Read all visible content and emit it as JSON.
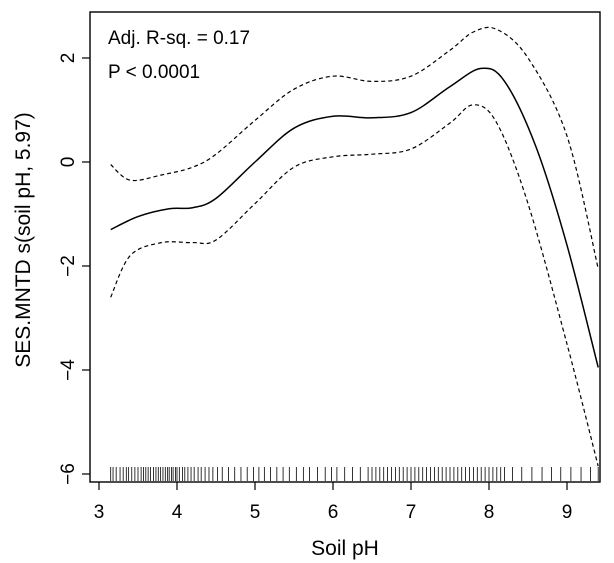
{
  "chart_data": {
    "type": "line",
    "xlabel": "Soil pH",
    "ylabel": "SES.MNTD s(soil pH, 5.97)",
    "xlim": [
      3.0,
      9.45
    ],
    "ylim": [
      -6.0,
      2.6
    ],
    "xticks": [
      "3",
      "4",
      "5",
      "6",
      "7",
      "8",
      "9"
    ],
    "yticks": [
      "−6",
      "−4",
      "−2",
      "0",
      "2"
    ],
    "xtick_values": [
      3,
      4,
      5,
      6,
      7,
      8,
      9
    ],
    "ytick_values": [
      -6,
      -4,
      -2,
      0,
      2
    ],
    "annotations": [
      "Adj. R-sq. = 0.17",
      "P < 0.0001"
    ],
    "grid": false,
    "series": [
      {
        "style": "solid",
        "x": [
          3.15,
          3.5,
          3.9,
          4.2,
          4.5,
          5.0,
          5.5,
          6.0,
          6.5,
          7.0,
          7.5,
          7.9,
          8.2,
          8.6,
          9.0,
          9.4
        ],
        "y": [
          -1.3,
          -1.05,
          -0.9,
          -0.88,
          -0.7,
          0.0,
          0.65,
          0.88,
          0.85,
          0.95,
          1.45,
          1.8,
          1.55,
          0.3,
          -1.6,
          -3.95
        ]
      },
      {
        "style": "dashed",
        "x": [
          3.15,
          3.4,
          3.8,
          4.2,
          4.5,
          5.0,
          5.5,
          6.0,
          6.5,
          7.0,
          7.5,
          7.8,
          8.1,
          8.5,
          9.0,
          9.4
        ],
        "y": [
          -0.05,
          -0.35,
          -0.25,
          -0.1,
          0.15,
          0.8,
          1.4,
          1.65,
          1.55,
          1.65,
          2.15,
          2.5,
          2.55,
          2.0,
          0.5,
          -2.05
        ]
      },
      {
        "style": "dashed",
        "x": [
          3.15,
          3.4,
          3.8,
          4.2,
          4.5,
          5.0,
          5.5,
          6.0,
          6.5,
          7.0,
          7.5,
          7.8,
          8.1,
          8.5,
          9.0,
          9.4
        ],
        "y": [
          -2.6,
          -1.8,
          -1.55,
          -1.55,
          -1.5,
          -0.8,
          -0.1,
          0.1,
          0.15,
          0.25,
          0.75,
          1.1,
          0.75,
          -0.8,
          -3.5,
          -5.85
        ]
      }
    ],
    "rug": [
      3.15,
      3.18,
      3.22,
      3.27,
      3.31,
      3.35,
      3.38,
      3.42,
      3.46,
      3.5,
      3.54,
      3.57,
      3.6,
      3.63,
      3.66,
      3.7,
      3.73,
      3.76,
      3.79,
      3.82,
      3.85,
      3.88,
      3.9,
      3.93,
      3.95,
      3.98,
      4.0,
      4.03,
      4.07,
      4.1,
      4.14,
      4.18,
      4.22,
      4.27,
      4.31,
      4.36,
      4.41,
      4.46,
      4.52,
      4.58,
      4.66,
      4.74,
      4.82,
      4.9,
      4.98,
      5.05,
      5.12,
      5.2,
      5.28,
      5.36,
      5.44,
      5.53,
      5.62,
      5.7,
      5.8,
      5.9,
      5.98,
      6.05,
      6.15,
      6.25,
      6.35,
      6.45,
      6.5,
      6.55,
      6.6,
      6.65,
      6.7,
      6.75,
      6.8,
      6.85,
      6.9,
      6.95,
      7.0,
      7.05,
      7.1,
      7.15,
      7.2,
      7.25,
      7.3,
      7.35,
      7.4,
      7.45,
      7.5,
      7.55,
      7.6,
      7.65,
      7.7,
      7.75,
      7.8,
      7.85,
      7.9,
      7.95,
      8.0,
      8.05,
      8.1,
      8.15,
      8.2,
      8.3,
      8.42,
      8.55,
      8.68,
      8.8,
      8.92,
      9.05,
      9.18,
      9.3,
      9.4
    ]
  }
}
